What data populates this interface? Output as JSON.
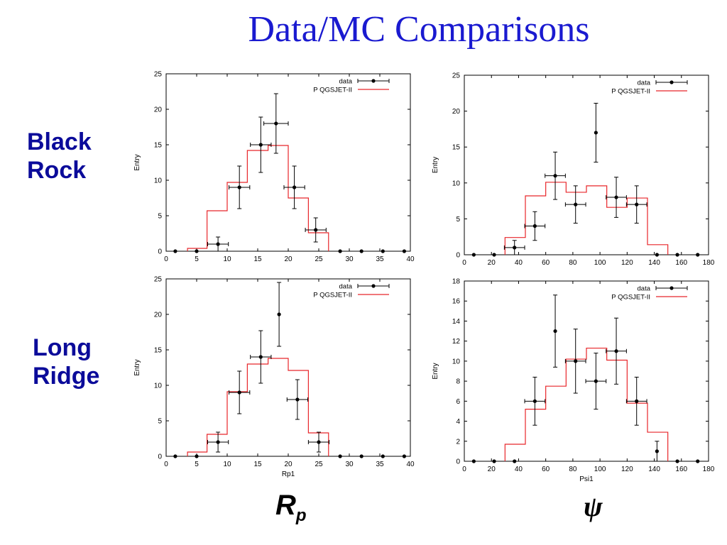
{
  "title": "Data/MC Comparisons",
  "row_labels": [
    {
      "line1": "Black",
      "line2": "Rock"
    },
    {
      "line1": "Long",
      "line2": "Ridge"
    }
  ],
  "column_labels": {
    "rp_main": "R",
    "rp_sub": "p",
    "psi": "ψ"
  },
  "colors": {
    "title": "#1a1ad0",
    "row_label": "#0b0b9a",
    "mc": "#e8262a",
    "data": "#000000"
  },
  "chart_data": [
    {
      "id": "black-rock-rp",
      "type": "line",
      "title": "",
      "xlabel": "",
      "ylabel": "Entry",
      "xlim": [
        0,
        40
      ],
      "ylim": [
        0,
        25
      ],
      "xticks": [
        0,
        5,
        10,
        15,
        20,
        25,
        30,
        35,
        40
      ],
      "yticks": [
        0,
        5,
        10,
        15,
        20,
        25
      ],
      "legend": [
        "data",
        "P QGSJET-II"
      ],
      "legend_position": "top-right",
      "data_points": {
        "name": "data",
        "x": [
          1.5,
          5,
          8.5,
          12,
          15.5,
          18,
          21,
          24.5,
          28.5,
          32,
          35.5,
          39
        ],
        "y": [
          0,
          0,
          1,
          9,
          15,
          18,
          9,
          3,
          0,
          0,
          0,
          0
        ],
        "xerr": [
          0,
          0,
          1.7,
          1.7,
          1.7,
          2.0,
          1.7,
          1.7,
          0,
          0,
          0,
          0
        ],
        "yerr": [
          0,
          0,
          1.0,
          3.0,
          3.9,
          4.2,
          3.0,
          1.7,
          0,
          0,
          0,
          0
        ]
      },
      "mc_histogram": {
        "name": "P QGSJET-II",
        "edges": [
          3.5,
          6.7,
          10,
          13.3,
          16.7,
          20,
          23.3,
          26.6
        ],
        "values": [
          0.4,
          5.7,
          9.7,
          14.2,
          14.9,
          7.5,
          2.6
        ]
      }
    },
    {
      "id": "black-rock-psi",
      "type": "line",
      "title": "",
      "xlabel": "",
      "ylabel": "Entry",
      "xlim": [
        0,
        180
      ],
      "ylim": [
        0,
        25
      ],
      "xticks": [
        0,
        20,
        40,
        60,
        80,
        100,
        120,
        140,
        160,
        180
      ],
      "yticks": [
        0,
        5,
        10,
        15,
        20,
        25
      ],
      "legend": [
        "data",
        "P QGSJET-II"
      ],
      "legend_position": "top-right",
      "data_points": {
        "name": "data",
        "x": [
          7,
          22,
          37,
          52,
          67,
          82,
          97,
          112,
          127,
          142,
          157,
          172
        ],
        "y": [
          0,
          0,
          1,
          4,
          11,
          7,
          17,
          8,
          7,
          0,
          0,
          0
        ],
        "xerr": [
          0,
          0,
          7.5,
          7.5,
          7.5,
          7.5,
          0,
          7.5,
          7.5,
          0,
          0,
          0
        ],
        "yerr": [
          0,
          0,
          1.0,
          2.0,
          3.3,
          2.6,
          4.1,
          2.8,
          2.6,
          0,
          0,
          0
        ]
      },
      "mc_histogram": {
        "name": "P QGSJET-II",
        "edges": [
          30,
          45,
          60,
          75,
          90,
          105,
          120,
          135,
          150
        ],
        "values": [
          2.4,
          8.2,
          10.1,
          8.7,
          9.6,
          6.6,
          7.9,
          1.4
        ]
      }
    },
    {
      "id": "long-ridge-rp",
      "type": "line",
      "title": "",
      "xlabel": "Rp1",
      "ylabel": "Entry",
      "xlim": [
        0,
        40
      ],
      "ylim": [
        0,
        25
      ],
      "xticks": [
        0,
        5,
        10,
        15,
        20,
        25,
        30,
        35,
        40
      ],
      "yticks": [
        0,
        5,
        10,
        15,
        20,
        25
      ],
      "legend": [
        "data",
        "P QGSJET-II"
      ],
      "legend_position": "top-right",
      "data_points": {
        "name": "data",
        "x": [
          1.5,
          5,
          8.5,
          12,
          15.5,
          18.5,
          21.5,
          25,
          28.5,
          32,
          35.5,
          39
        ],
        "y": [
          0,
          0,
          2,
          9,
          14,
          20,
          8,
          2,
          0,
          0,
          0,
          0
        ],
        "xerr": [
          0,
          0,
          1.7,
          1.7,
          1.7,
          0,
          1.7,
          1.7,
          0,
          0,
          0,
          0
        ],
        "yerr": [
          0,
          0,
          1.4,
          3.0,
          3.7,
          4.5,
          2.8,
          1.4,
          0,
          0,
          0,
          0
        ]
      },
      "mc_histogram": {
        "name": "P QGSJET-II",
        "edges": [
          3.5,
          6.7,
          10,
          13.3,
          16.7,
          20,
          23.3,
          26.6
        ],
        "values": [
          0.6,
          3.1,
          9.1,
          13.0,
          13.8,
          12.1,
          3.3
        ]
      }
    },
    {
      "id": "long-ridge-psi",
      "type": "line",
      "title": "",
      "xlabel": "Psi1",
      "ylabel": "Entry",
      "xlim": [
        0,
        180
      ],
      "ylim": [
        0,
        18
      ],
      "xticks": [
        0,
        20,
        40,
        60,
        80,
        100,
        120,
        140,
        160,
        180
      ],
      "yticks": [
        0,
        2,
        4,
        6,
        8,
        10,
        12,
        14,
        16,
        18
      ],
      "legend": [
        "data",
        "P QGSJET-II"
      ],
      "legend_position": "top-right",
      "data_points": {
        "name": "data",
        "x": [
          7,
          22,
          37,
          52,
          67,
          82,
          97,
          112,
          127,
          142,
          157,
          172
        ],
        "y": [
          0,
          0,
          0,
          6,
          13,
          10,
          8,
          11,
          6,
          1,
          0,
          0
        ],
        "xerr": [
          0,
          0,
          0,
          7.5,
          0,
          7.5,
          7.5,
          7.5,
          7.5,
          0,
          0,
          0
        ],
        "yerr": [
          0,
          0,
          0,
          2.4,
          3.6,
          3.2,
          2.8,
          3.3,
          2.4,
          1.0,
          0,
          0
        ]
      },
      "mc_histogram": {
        "name": "P QGSJET-II",
        "edges": [
          30,
          45,
          60,
          75,
          90,
          105,
          120,
          135,
          150
        ],
        "values": [
          1.7,
          5.2,
          7.5,
          10.2,
          11.3,
          10.1,
          5.8,
          2.9
        ]
      }
    }
  ]
}
